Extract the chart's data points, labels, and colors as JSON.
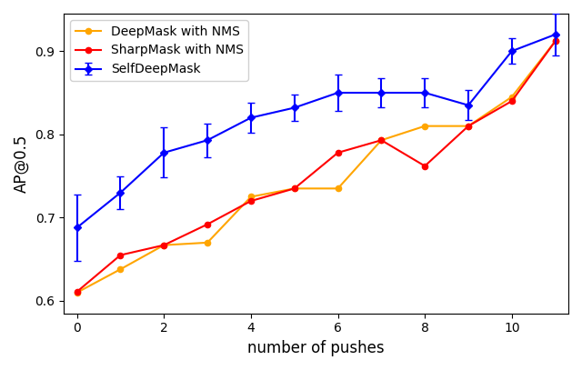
{
  "x": [
    0,
    1,
    2,
    3,
    4,
    5,
    6,
    7,
    8,
    9,
    10,
    11
  ],
  "deepmask_y": [
    0.61,
    0.638,
    0.667,
    0.67,
    0.725,
    0.735,
    0.735,
    0.793,
    0.81,
    0.81,
    0.845,
    0.912
  ],
  "sharpmask_y": [
    0.611,
    0.655,
    0.667,
    0.692,
    0.72,
    0.735,
    0.778,
    0.793,
    0.762,
    0.81,
    0.84,
    0.912
  ],
  "selfdeep_y": [
    0.688,
    0.73,
    0.778,
    0.793,
    0.82,
    0.832,
    0.85,
    0.85,
    0.85,
    0.835,
    0.9,
    0.92
  ],
  "selfdeep_yerr": [
    0.04,
    0.02,
    0.03,
    0.02,
    0.018,
    0.016,
    0.022,
    0.018,
    0.018,
    0.018,
    0.015,
    0.025
  ],
  "deepmask_color": "#FFA500",
  "sharpmask_color": "#FF0000",
  "selfdeep_color": "#0000FF",
  "deepmask_label": "DeepMask with NMS",
  "sharpmask_label": "SharpMask with NMS",
  "selfdeep_label": "SelfDeepMask",
  "xlabel": "number of pushes",
  "ylabel": "AP@0.5",
  "ylim": [
    0.585,
    0.945
  ],
  "xlim": [
    -0.3,
    11.3
  ],
  "yticks": [
    0.6,
    0.7,
    0.8,
    0.9
  ],
  "xticks": [
    0,
    2,
    4,
    6,
    8,
    10
  ],
  "figsize": [
    6.4,
    4.07
  ],
  "dpi": 100
}
